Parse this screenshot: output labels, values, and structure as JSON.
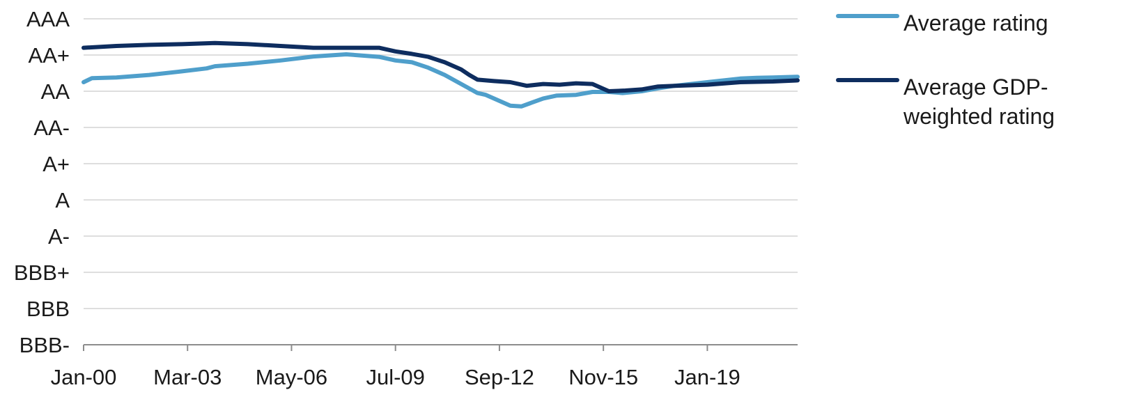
{
  "chart_data": {
    "type": "line",
    "title": "",
    "xlabel": "",
    "ylabel": "",
    "x_tick_labels": [
      "Jan-00",
      "Mar-03",
      "May-06",
      "Jul-09",
      "Sep-12",
      "Nov-15",
      "Jan-19"
    ],
    "y_tick_labels": [
      "AAA",
      "AA+",
      "AA",
      "AA-",
      "A+",
      "A",
      "A-",
      "BBB+",
      "BBB",
      "BBB-"
    ],
    "y_scale": "rating notch (AAA highest, BBB- lowest)",
    "ylim": [
      "BBB-",
      "AAA"
    ],
    "xlim": [
      "Jan-00",
      "Oct-21"
    ],
    "grid": "horizontal",
    "legend_position": "right",
    "series": [
      {
        "name": "Average rating",
        "color": "#4f9fcb",
        "points": [
          [
            "Jan-00",
            7.25
          ],
          [
            "Apr-00",
            7.36
          ],
          [
            "Jan-01",
            7.38
          ],
          [
            "Jan-02",
            7.45
          ],
          [
            "Jan-03",
            7.55
          ],
          [
            "Oct-03",
            7.63
          ],
          [
            "Jan-04",
            7.69
          ],
          [
            "Jan-05",
            7.76
          ],
          [
            "Jan-06",
            7.85
          ],
          [
            "Jan-07",
            7.96
          ],
          [
            "Jan-08",
            8.02
          ],
          [
            "Jan-09",
            7.95
          ],
          [
            "Jul-09",
            7.85
          ],
          [
            "Jan-10",
            7.8
          ],
          [
            "Jul-10",
            7.65
          ],
          [
            "Jan-11",
            7.45
          ],
          [
            "Jul-11",
            7.2
          ],
          [
            "Jan-12",
            6.95
          ],
          [
            "Apr-12",
            6.9
          ],
          [
            "Jan-13",
            6.6
          ],
          [
            "May-13",
            6.58
          ],
          [
            "Jan-14",
            6.8
          ],
          [
            "Jun-14",
            6.88
          ],
          [
            "Jan-15",
            6.9
          ],
          [
            "Jul-15",
            6.98
          ],
          [
            "Jan-16",
            6.98
          ],
          [
            "Jun-16",
            6.95
          ],
          [
            "Jan-17",
            7.0
          ],
          [
            "Jul-17",
            7.08
          ],
          [
            "Jan-18",
            7.15
          ],
          [
            "Jan-19",
            7.25
          ],
          [
            "Jan-20",
            7.35
          ],
          [
            "Jul-20",
            7.37
          ],
          [
            "Jan-21",
            7.38
          ],
          [
            "Oct-21",
            7.4
          ]
        ]
      },
      {
        "name": "Average GDP-weighted rating",
        "color": "#0e2d5f",
        "points": [
          [
            "Jan-00",
            8.2
          ],
          [
            "Jan-01",
            8.25
          ],
          [
            "Jan-02",
            8.28
          ],
          [
            "Jan-03",
            8.3
          ],
          [
            "Jan-04",
            8.33
          ],
          [
            "Jan-05",
            8.3
          ],
          [
            "Jan-06",
            8.25
          ],
          [
            "Jan-07",
            8.2
          ],
          [
            "Jan-08",
            8.2
          ],
          [
            "Jan-09",
            8.2
          ],
          [
            "Jul-09",
            8.1
          ],
          [
            "Jan-10",
            8.03
          ],
          [
            "Jul-10",
            7.95
          ],
          [
            "Jan-11",
            7.8
          ],
          [
            "Jul-11",
            7.6
          ],
          [
            "Oct-11",
            7.45
          ],
          [
            "Jan-12",
            7.32
          ],
          [
            "Jul-12",
            7.28
          ],
          [
            "Jan-13",
            7.25
          ],
          [
            "Jul-13",
            7.15
          ],
          [
            "Jan-14",
            7.2
          ],
          [
            "Jul-14",
            7.18
          ],
          [
            "Jan-15",
            7.22
          ],
          [
            "Jul-15",
            7.2
          ],
          [
            "Jan-16",
            7.0
          ],
          [
            "Jul-16",
            7.02
          ],
          [
            "Jan-17",
            7.05
          ],
          [
            "Jul-17",
            7.13
          ],
          [
            "Jan-18",
            7.15
          ],
          [
            "Jan-19",
            7.18
          ],
          [
            "Jan-20",
            7.25
          ],
          [
            "Jan-21",
            7.27
          ],
          [
            "Oct-21",
            7.3
          ]
        ]
      }
    ]
  }
}
